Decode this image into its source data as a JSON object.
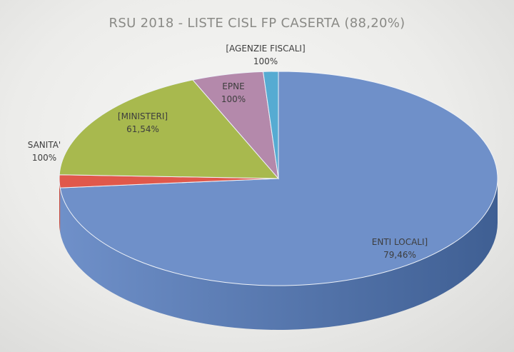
{
  "chart_data": {
    "type": "pie",
    "title": "RSU 2018 - LISTE CISL FP CASERTA (88,20%)",
    "slices": [
      {
        "name": "ENTI LOCALI]",
        "label_value": "79,46%",
        "color": "#6f90c9",
        "side_color": "#3f5f93"
      },
      {
        "name": "SANITA'",
        "label_value": "100%",
        "color": "#e0584b",
        "side_color": "#a8392f"
      },
      {
        "name": "[MINISTERI]",
        "label_value": "61,54%",
        "color": "#a8b94e",
        "side_color": "#7c8a35"
      },
      {
        "name": "EPNE",
        "label_value": "100%",
        "color": "#b489ab",
        "side_color": "#876279"
      },
      {
        "name": "[AGENZIE FISCALI]",
        "label_value": "100%",
        "color": "#56abd2",
        "side_color": "#3a7fa0"
      }
    ],
    "legend": "none (labels on slices)"
  }
}
